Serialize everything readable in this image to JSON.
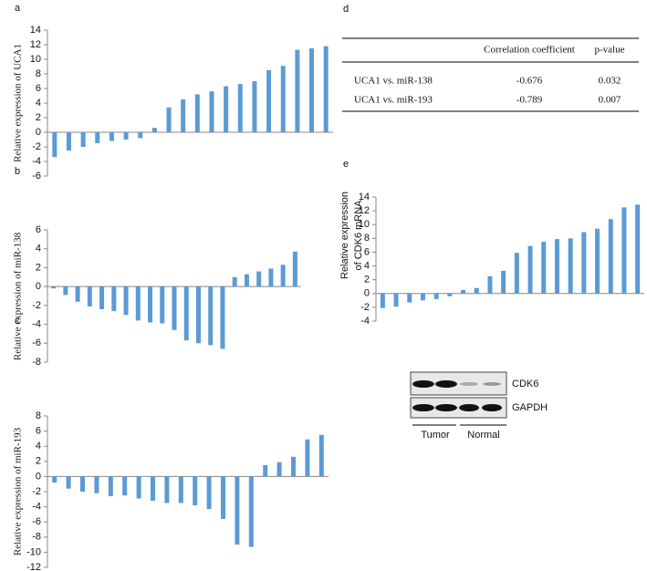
{
  "chart_data": [
    {
      "type": "bar",
      "label": "a",
      "ylabel": "Relative expression of UCA1",
      "color": "#5b9bd5",
      "values": [
        -3.4,
        -2.5,
        -2.0,
        -1.5,
        -1.2,
        -1.0,
        -0.8,
        0.6,
        3.4,
        4.5,
        5.2,
        5.6,
        6.3,
        6.6,
        7.0,
        8.5,
        9.1,
        11.3,
        11.5,
        11.8
      ],
      "ylim": [
        -6,
        14
      ],
      "yticks": [
        -6,
        -4,
        -2,
        0,
        2,
        4,
        6,
        8,
        10,
        12,
        14
      ]
    },
    {
      "type": "bar",
      "label": "b",
      "ylabel": "Relative expression of miR-138",
      "color": "#5b9bd5",
      "values": [
        -0.2,
        -0.9,
        -1.6,
        -2.1,
        -2.4,
        -2.6,
        -3.0,
        -3.6,
        -3.8,
        -3.9,
        -4.6,
        -5.7,
        -6.0,
        -6.2,
        -6.6,
        1.0,
        1.3,
        1.6,
        1.9,
        2.3,
        3.7
      ],
      "ylim": [
        -8,
        6
      ],
      "yticks": [
        -8,
        -6,
        -4,
        -2,
        0,
        2,
        4,
        6
      ]
    },
    {
      "type": "bar",
      "label": "c",
      "ylabel": "Relative expression of miR-193",
      "color": "#5b9bd5",
      "values": [
        -0.8,
        -1.6,
        -2.0,
        -2.2,
        -2.6,
        -2.5,
        -2.9,
        -3.2,
        -3.5,
        -3.5,
        -3.8,
        -4.3,
        -5.6,
        -9.0,
        -9.3,
        1.5,
        1.9,
        2.6,
        4.9,
        5.5
      ],
      "ylim": [
        -12,
        8
      ],
      "yticks": [
        -12,
        -10,
        -8,
        -6,
        -4,
        -2,
        0,
        2,
        4,
        6,
        8
      ]
    },
    {
      "type": "bar",
      "label": "e",
      "ylabel": [
        "Relative expression",
        "of CDK6 mRNA"
      ],
      "color": "#5b9bd5",
      "values": [
        -2.1,
        -1.9,
        -1.3,
        -1.0,
        -0.8,
        -0.4,
        0.5,
        0.8,
        2.5,
        3.3,
        5.9,
        6.9,
        7.5,
        7.9,
        8.0,
        8.9,
        9.4,
        10.8,
        12.5,
        12.9
      ],
      "ylim": [
        -4,
        14
      ],
      "yticks": [
        -4,
        -2,
        0,
        2,
        4,
        6,
        8,
        10,
        12,
        14
      ]
    }
  ],
  "table": {
    "label": "d",
    "columns": [
      "Correlation coefficient",
      "p-value"
    ],
    "rows": [
      [
        "UCA1 vs. miR-138",
        -0.676,
        0.032
      ],
      [
        "UCA1 vs. miR-193",
        -0.789,
        0.007
      ]
    ]
  },
  "blot": {
    "bands": [
      "CDK6",
      "GAPDH"
    ],
    "groups": [
      "Tumor",
      "Normal"
    ]
  }
}
